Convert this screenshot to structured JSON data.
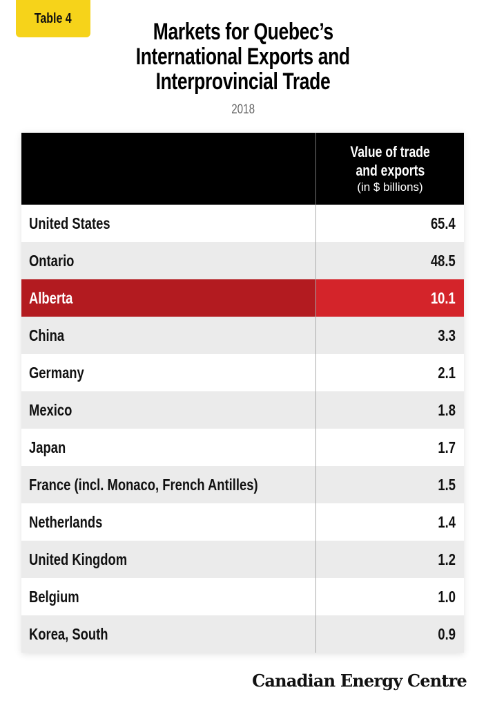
{
  "badge": "Table 4",
  "title": [
    "Markets for Quebec’s",
    "International Exports and",
    "Interprovincial Trade"
  ],
  "year": "2018",
  "table": {
    "header": {
      "col1": "",
      "col2_line1": "Value of trade",
      "col2_line2": "and exports",
      "col2_unit": "(in $ billions)"
    },
    "rows": [
      {
        "label": "United States",
        "value": "65.4"
      },
      {
        "label": "Ontario",
        "value": "48.5"
      },
      {
        "label": "Alberta",
        "value": "10.1",
        "highlight": true
      },
      {
        "label": "China",
        "value": "3.3"
      },
      {
        "label": "Germany",
        "value": "2.1"
      },
      {
        "label": "Mexico",
        "value": "1.8"
      },
      {
        "label": "Japan",
        "value": "1.7"
      },
      {
        "label": "France (incl. Monaco, French Antilles)",
        "value": "1.5"
      },
      {
        "label": "Netherlands",
        "value": "1.4"
      },
      {
        "label": "United Kingdom",
        "value": "1.2"
      },
      {
        "label": "Belgium",
        "value": "1.0"
      },
      {
        "label": "Korea, South",
        "value": "0.9"
      }
    ]
  },
  "colors": {
    "badge": "#f6d31a",
    "highlight_dark": "#b31b20",
    "highlight_light": "#d4242a",
    "header": "#000000",
    "alt_row": "#ebebeb"
  },
  "footer": {
    "logo": "Canadian Energy Centre"
  }
}
